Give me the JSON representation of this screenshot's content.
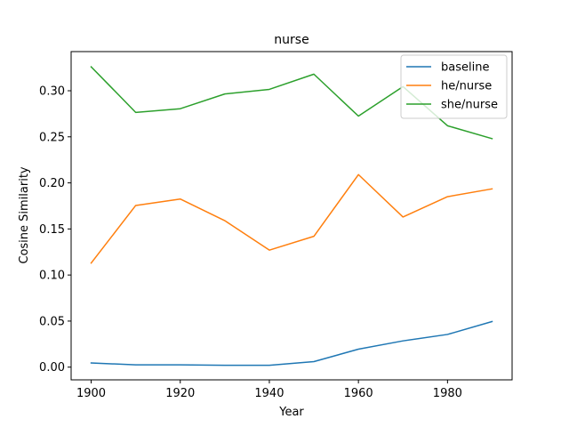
{
  "chart_data": {
    "type": "line",
    "title": "nurse",
    "xlabel": "Year",
    "ylabel": "Cosine Similarity",
    "x": [
      1900,
      1910,
      1920,
      1930,
      1940,
      1950,
      1960,
      1970,
      1980,
      1990
    ],
    "xlim": [
      1895.5,
      1994.5
    ],
    "ylim": [
      -0.0138,
      0.3425
    ],
    "xticks": [
      1900,
      1920,
      1940,
      1960,
      1980
    ],
    "xtick_labels": [
      "1900",
      "1920",
      "1940",
      "1960",
      "1980"
    ],
    "yticks": [
      0.0,
      0.05,
      0.1,
      0.15,
      0.2,
      0.25,
      0.3
    ],
    "ytick_labels": [
      "0.00",
      "0.05",
      "0.10",
      "0.15",
      "0.20",
      "0.25",
      "0.30"
    ],
    "grid": false,
    "legend_position": "top-right",
    "series": [
      {
        "name": "baseline",
        "color": "#1f77b4",
        "values": [
          0.0045,
          0.0025,
          0.0025,
          0.002,
          0.002,
          0.006,
          0.0195,
          0.0285,
          0.0355,
          0.0495
        ]
      },
      {
        "name": "he/nurse",
        "color": "#ff7f0e",
        "values": [
          0.113,
          0.1755,
          0.1825,
          0.159,
          0.127,
          0.142,
          0.209,
          0.163,
          0.185,
          0.1935
        ]
      },
      {
        "name": "she/nurse",
        "color": "#2ca02c",
        "values": [
          0.326,
          0.2765,
          0.2805,
          0.2965,
          0.3015,
          0.318,
          0.2725,
          0.3045,
          0.262,
          0.248
        ]
      }
    ]
  }
}
